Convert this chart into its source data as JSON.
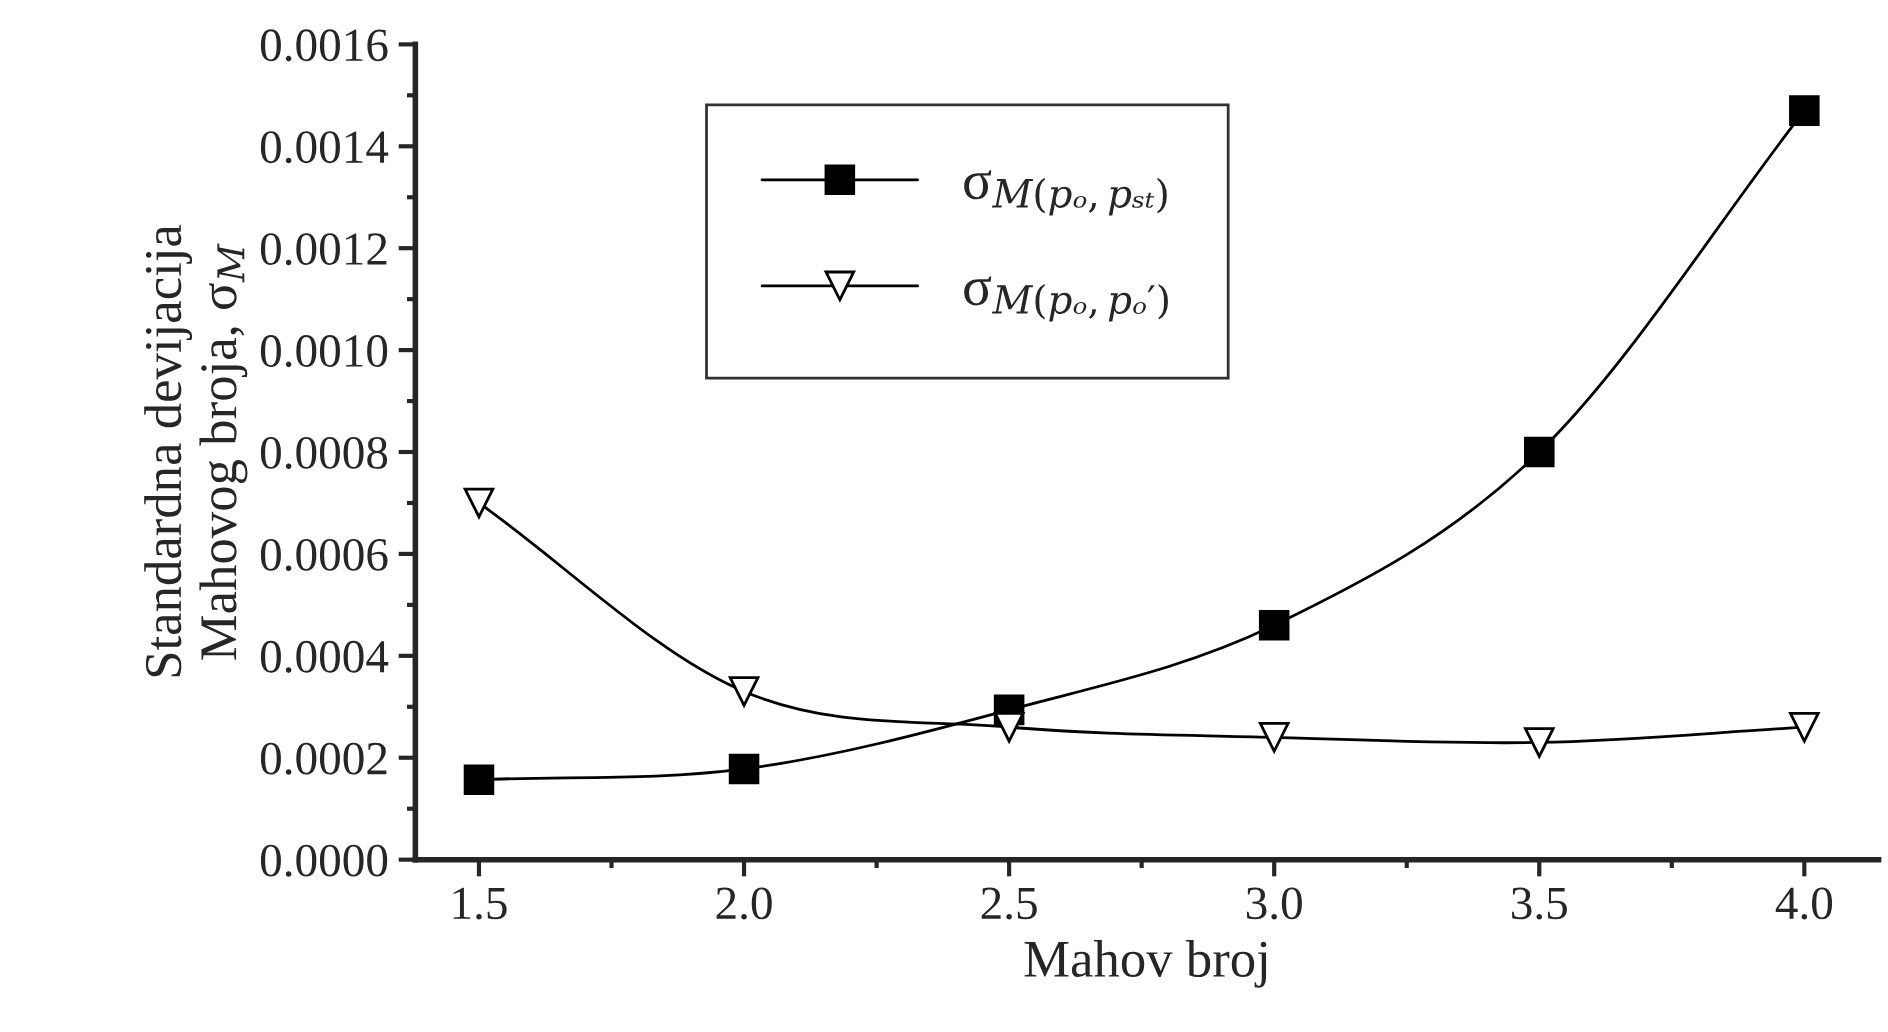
{
  "chart_data": {
    "type": "line",
    "xlabel": "Mahov broj",
    "ylabel": "Standardna devijacija\nMahovog broja, σ$_{M}$",
    "x": [
      1.5,
      2.0,
      2.5,
      3.0,
      3.5,
      4.0
    ],
    "series": [
      {
        "name": "σ$_{M(pₒ,pₛₜ)}$",
        "color": "#000000",
        "marker": "square",
        "values": [
          0.000157,
          0.000178,
          0.000294,
          0.00046,
          0.0008,
          0.00147
        ]
      },
      {
        "name": "σ$_{M(pₒ,pₒ′)}$",
        "color": "#000000",
        "marker": "triangle",
        "values": [
          0.0007,
          0.00033,
          0.00026,
          0.00024,
          0.00023,
          0.00026
        ]
      }
    ],
    "xlim": [
      1.38,
      4.14
    ],
    "ylim": [
      0,
      0.0016
    ],
    "xticks": [
      1.5,
      {
        "value": 2.0,
        "label": "2.0"
      },
      2.5,
      {
        "value": 3.0,
        "label": "3.0"
      },
      3.5,
      {
        "value": 4.0,
        "label": "4.0"
      }
    ],
    "yticks": [
      {
        "value": 0,
        "label": "0.0000"
      },
      {
        "value": 0.0002,
        "label": "0.0002"
      },
      {
        "value": 0.0004,
        "label": "0.0004"
      },
      {
        "value": 0.0006,
        "label": "0.0006"
      },
      {
        "value": 0.0008,
        "label": "0.0008"
      },
      {
        "value": 0.001,
        "label": "0.0010"
      },
      {
        "value": 0.0012,
        "label": "0.0012"
      },
      {
        "value": 0.0014,
        "label": "0.0014"
      },
      {
        "value": 0.0016,
        "label": "0.0016"
      }
    ],
    "grid": false,
    "legend": "top left",
    "line_style": "solid"
  }
}
